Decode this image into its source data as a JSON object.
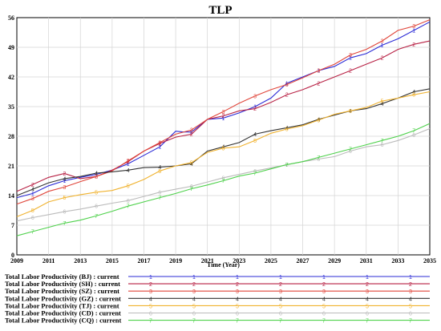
{
  "chart_data": {
    "type": "line",
    "title": "TLP",
    "xlabel": "Time (Year)",
    "ylabel": "",
    "xlim": [
      2009,
      2035
    ],
    "ylim": [
      0,
      56
    ],
    "x_ticks": [
      "2009",
      "2011",
      "2013",
      "2015",
      "2017",
      "2019",
      "2021",
      "2023",
      "2025",
      "2027",
      "2029",
      "2031",
      "2033",
      "2035"
    ],
    "y_ticks": [
      "0",
      "7",
      "14",
      "21",
      "28",
      "35",
      "42",
      "49",
      "56"
    ],
    "grid": true,
    "legend_position": "bottom",
    "series": [
      {
        "name": "Total Labor Productivity  (BJ)  :  current",
        "marker": "1",
        "color": "#2b2bd6",
        "x": [
          2009,
          2010,
          2011,
          2012,
          2013,
          2014,
          2015,
          2016,
          2017,
          2018,
          2019,
          2019.5,
          2020,
          2021,
          2022,
          2023,
          2024,
          2025,
          2026,
          2027,
          2028,
          2029,
          2030,
          2031,
          2032,
          2033,
          2034,
          2035
        ],
        "y": [
          13.5,
          14.5,
          16.3,
          17.5,
          18.3,
          19.0,
          20.0,
          21.5,
          23.5,
          25.5,
          29.2,
          29.0,
          29.0,
          32.0,
          32.3,
          33.5,
          35.0,
          37.0,
          40.5,
          42.0,
          43.5,
          44.5,
          46.5,
          47.5,
          49.5,
          51.0,
          53.0,
          55.0
        ]
      },
      {
        "name": "Total Labor Productivity  (SH)  :  current",
        "marker": "2",
        "color": "#b82245",
        "x": [
          2009,
          2010,
          2011,
          2012,
          2013,
          2014,
          2015,
          2016,
          2017,
          2018,
          2019,
          2020,
          2021,
          2022,
          2023,
          2024,
          2025,
          2026,
          2027,
          2028,
          2029,
          2030,
          2031,
          2032,
          2033,
          2034,
          2035
        ],
        "y": [
          15.0,
          16.6,
          18.3,
          19.2,
          18.0,
          18.5,
          20.0,
          22.0,
          24.5,
          26.3,
          27.8,
          28.5,
          32.0,
          32.8,
          34.0,
          34.5,
          36.0,
          37.8,
          39.0,
          40.5,
          42.0,
          43.5,
          45.0,
          46.5,
          48.5,
          49.7,
          50.5
        ]
      },
      {
        "name": "Total Labor Productivity  (SZ)  :  current",
        "marker": "3",
        "color": "#e0453a",
        "x": [
          2009,
          2010,
          2011,
          2012,
          2013,
          2014,
          2015,
          2016,
          2017,
          2018,
          2019,
          2020,
          2021,
          2022,
          2023,
          2024,
          2025,
          2026,
          2027,
          2028,
          2029,
          2030,
          2031,
          2032,
          2033,
          2034,
          2035
        ],
        "y": [
          12.0,
          13.3,
          15.0,
          16.0,
          17.3,
          18.5,
          19.8,
          22.2,
          24.5,
          26.5,
          28.5,
          29.5,
          32.0,
          33.8,
          35.8,
          37.5,
          39.0,
          40.2,
          41.8,
          43.5,
          45.0,
          47.2,
          48.5,
          50.5,
          53.0,
          54.0,
          55.5
        ]
      },
      {
        "name": "Total Labor Productivity  (GZ)  :  current",
        "marker": "4",
        "color": "#333333",
        "x": [
          2009,
          2010,
          2011,
          2012,
          2013,
          2014,
          2015,
          2016,
          2017,
          2018,
          2019,
          2020,
          2021,
          2022,
          2023,
          2024,
          2025,
          2026,
          2027,
          2028,
          2029,
          2030,
          2031,
          2032,
          2033,
          2034,
          2035
        ],
        "y": [
          14.0,
          15.5,
          17.0,
          18.0,
          18.5,
          19.3,
          19.6,
          20.0,
          20.6,
          20.7,
          21.0,
          21.5,
          24.5,
          25.5,
          26.5,
          28.5,
          29.3,
          30.0,
          30.7,
          32.0,
          33.0,
          34.0,
          34.5,
          35.7,
          37.0,
          38.5,
          39.2
        ]
      },
      {
        "name": "Total Labor Productivity  (TJ)  :  current",
        "marker": "5",
        "color": "#f0b22e",
        "x": [
          2009,
          2010,
          2011,
          2012,
          2013,
          2014,
          2015,
          2016,
          2017,
          2018,
          2019,
          2020,
          2021,
          2022,
          2023,
          2024,
          2025,
          2026,
          2027,
          2028,
          2029,
          2030,
          2031,
          2032,
          2033,
          2034,
          2035
        ],
        "y": [
          9.0,
          10.5,
          12.5,
          13.5,
          14.2,
          14.8,
          15.2,
          16.3,
          17.8,
          19.8,
          21.0,
          21.8,
          24.2,
          25.2,
          25.5,
          27.0,
          28.7,
          29.7,
          30.5,
          31.8,
          33.2,
          34.0,
          34.8,
          36.3,
          37.0,
          37.8,
          38.5
        ]
      },
      {
        "name": "Total Labor Productivity  (CD)  :  current",
        "marker": "6",
        "color": "#bbbbbb",
        "x": [
          2009,
          2010,
          2011,
          2012,
          2013,
          2014,
          2015,
          2016,
          2017,
          2018,
          2019,
          2020,
          2021,
          2022,
          2023,
          2024,
          2025,
          2026,
          2027,
          2028,
          2029,
          2030,
          2031,
          2032,
          2033,
          2034,
          2035
        ],
        "y": [
          8.0,
          8.8,
          9.5,
          10.2,
          10.8,
          11.5,
          12.2,
          12.8,
          13.8,
          14.8,
          15.5,
          16.2,
          17.2,
          18.2,
          19.0,
          19.8,
          20.5,
          21.3,
          22.0,
          22.6,
          23.2,
          24.5,
          25.5,
          26.0,
          27.0,
          28.3,
          29.8
        ]
      },
      {
        "name": "Total Labor Productivity  (CQ)  :  current",
        "marker": "7",
        "color": "#4ed14b",
        "x": [
          2009,
          2010,
          2011,
          2012,
          2013,
          2014,
          2015,
          2016,
          2017,
          2018,
          2019,
          2020,
          2021,
          2022,
          2023,
          2024,
          2025,
          2026,
          2027,
          2028,
          2029,
          2030,
          2031,
          2032,
          2033,
          2034,
          2035
        ],
        "y": [
          4.5,
          5.5,
          6.5,
          7.5,
          8.2,
          9.2,
          10.3,
          11.5,
          12.5,
          13.5,
          14.5,
          15.6,
          16.5,
          17.5,
          18.6,
          19.3,
          20.3,
          21.3,
          22.0,
          23.0,
          24.0,
          25.0,
          26.0,
          27.0,
          28.0,
          29.3,
          31.0
        ]
      }
    ]
  }
}
